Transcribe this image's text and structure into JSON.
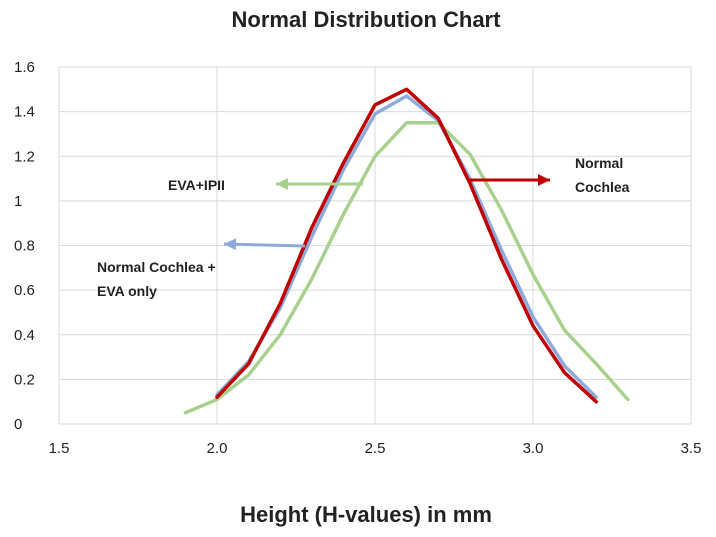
{
  "chart_data": {
    "type": "line",
    "title": "Normal Distribution Chart",
    "xlabel": "Height (H-values) in mm",
    "ylabel": "",
    "xlim": [
      1.5,
      3.5
    ],
    "ylim": [
      0,
      1.6
    ],
    "x_ticks": [
      "1.5",
      "2.0",
      "2.5",
      "3.0",
      "3.5"
    ],
    "y_ticks": [
      "0",
      "0.2",
      "0.4",
      "0.6",
      "0.8",
      "1",
      "1.2",
      "1.4",
      "1.6"
    ],
    "grid": true,
    "series": [
      {
        "name": "EVA+IPII",
        "color": "#a9d18e",
        "x": [
          1.9,
          2.0,
          2.1,
          2.2,
          2.3,
          2.4,
          2.5,
          2.6,
          2.7,
          2.8,
          2.9,
          3.0,
          3.1,
          3.2,
          3.3
        ],
        "y": [
          0.05,
          0.11,
          0.22,
          0.4,
          0.65,
          0.94,
          1.2,
          1.35,
          1.35,
          1.21,
          0.96,
          0.67,
          0.42,
          0.27,
          0.11
        ]
      },
      {
        "name": "Normal Cochlea + EVA only",
        "color": "#8eaadb",
        "x": [
          2.0,
          2.1,
          2.2,
          2.3,
          2.4,
          2.5,
          2.6,
          2.7,
          2.8,
          2.9,
          3.0,
          3.1,
          3.2
        ],
        "y": [
          0.13,
          0.28,
          0.52,
          0.84,
          1.14,
          1.39,
          1.47,
          1.36,
          1.1,
          0.78,
          0.48,
          0.26,
          0.12
        ]
      },
      {
        "name": "Normal Cochlea",
        "color": "#c00000",
        "x": [
          2.0,
          2.1,
          2.2,
          2.3,
          2.4,
          2.5,
          2.6,
          2.7,
          2.8,
          2.9,
          3.0,
          3.1,
          3.2
        ],
        "y": [
          0.12,
          0.27,
          0.54,
          0.88,
          1.17,
          1.43,
          1.5,
          1.37,
          1.08,
          0.74,
          0.44,
          0.23,
          0.1
        ]
      }
    ],
    "annotations": [
      {
        "id": "eva-ipii",
        "lines": [
          "EVA+IPII"
        ],
        "color": "#a9d18e",
        "direction": "left"
      },
      {
        "id": "normal-eva",
        "lines": [
          "Normal Cochlea +",
          "EVA only"
        ],
        "color": "#8eaadb",
        "direction": "left"
      },
      {
        "id": "normal",
        "lines": [
          "Normal",
          "Cochlea"
        ],
        "color": "#c00000",
        "direction": "right"
      }
    ]
  }
}
